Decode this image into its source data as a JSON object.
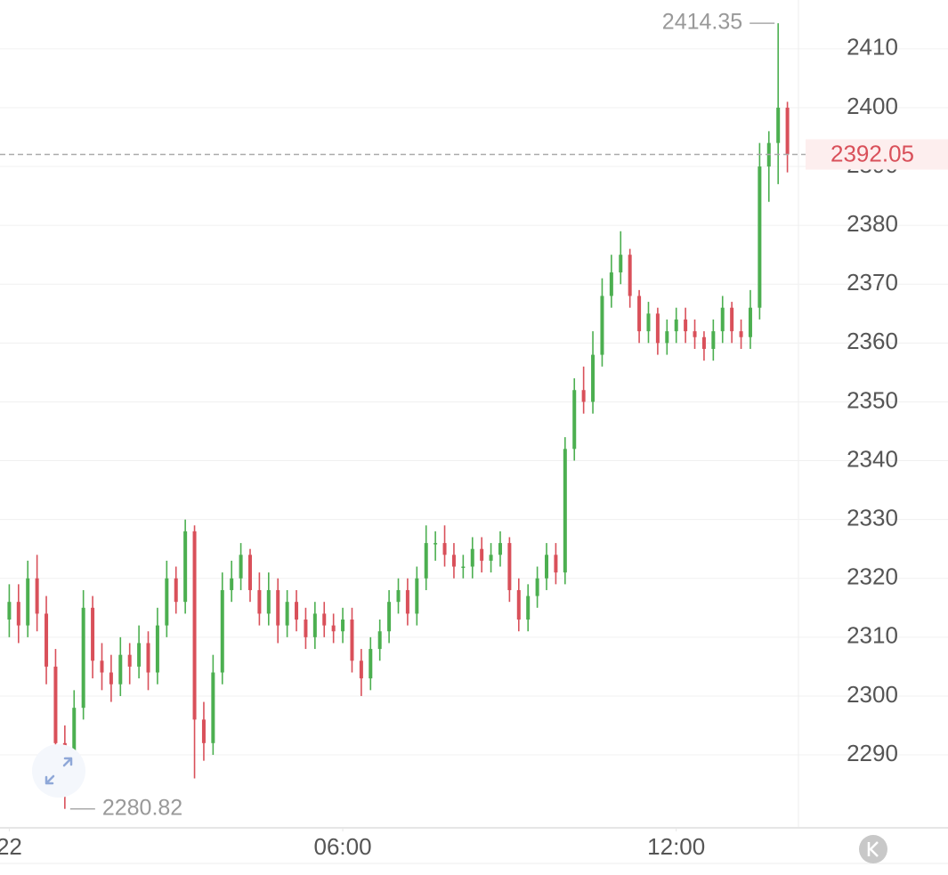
{
  "chart_data": {
    "type": "candlestick",
    "up_color": "#4caf50",
    "down_color": "#d9505a",
    "xlim": [
      -10,
      850
    ],
    "xticks": [
      {
        "value": 0,
        "label": "22"
      },
      {
        "value": 360,
        "label": "06:00"
      },
      {
        "value": 720,
        "label": "12:00"
      }
    ],
    "ylim": [
      2277.6,
      2418.3
    ],
    "yticks": [
      2290,
      2300,
      2310,
      2320,
      2330,
      2340,
      2350,
      2360,
      2370,
      2380,
      2390,
      2400,
      2410
    ],
    "grid": true,
    "x": [
      0,
      10,
      20,
      30,
      40,
      50,
      60,
      70,
      80,
      90,
      100,
      110,
      120,
      130,
      140,
      150,
      160,
      170,
      180,
      190,
      200,
      210,
      220,
      230,
      240,
      250,
      260,
      270,
      280,
      290,
      300,
      310,
      320,
      330,
      340,
      350,
      360,
      370,
      380,
      390,
      400,
      410,
      420,
      430,
      440,
      450,
      460,
      470,
      480,
      490,
      500,
      510,
      520,
      530,
      540,
      550,
      560,
      570,
      580,
      590,
      600,
      610,
      620,
      630,
      640,
      650,
      660,
      670,
      680,
      690,
      700,
      710,
      720,
      730,
      740,
      750,
      760,
      770,
      780,
      790,
      800,
      810,
      820,
      830,
      840
    ],
    "open": [
      2313,
      2316,
      2312,
      2320,
      2314,
      2305,
      2292,
      2288,
      2298,
      2315,
      2306,
      2304,
      2302,
      2307,
      2305,
      2309,
      2304,
      2312,
      2320,
      2316,
      2328,
      2296,
      2292,
      2304,
      2318,
      2320,
      2324,
      2318,
      2314,
      2318,
      2312,
      2316,
      2313,
      2310,
      2314,
      2312,
      2311,
      2313,
      2306,
      2303,
      2308,
      2311,
      2316,
      2318,
      2314,
      2320,
      2326,
      2326,
      2324,
      2322,
      2322,
      2325,
      2323,
      2324,
      2326,
      2318,
      2313,
      2317,
      2320,
      2324,
      2321,
      2342,
      2352,
      2350,
      2358,
      2368,
      2372,
      2375,
      2368,
      2362,
      2365,
      2360,
      2362,
      2364,
      2362,
      2361,
      2359,
      2362,
      2366,
      2362,
      2361,
      2366,
      2390,
      2394,
      2400
    ],
    "high": [
      2319,
      2319,
      2323,
      2324,
      2317,
      2308,
      2295,
      2301,
      2318,
      2317,
      2309,
      2307,
      2310,
      2309,
      2312,
      2311,
      2315,
      2323,
      2322,
      2330,
      2329,
      2299,
      2307,
      2321,
      2323,
      2326,
      2325,
      2321,
      2321,
      2320,
      2318,
      2318,
      2315,
      2316,
      2316,
      2314,
      2315,
      2315,
      2308,
      2310,
      2313,
      2318,
      2320,
      2320,
      2322,
      2329,
      2328,
      2329,
      2326,
      2324,
      2327,
      2327,
      2326,
      2328,
      2327,
      2320,
      2319,
      2322,
      2326,
      2326,
      2344,
      2354,
      2356,
      2362,
      2371,
      2375,
      2379,
      2376,
      2369,
      2367,
      2366,
      2364,
      2366,
      2366,
      2364,
      2362,
      2364,
      2368,
      2367,
      2364,
      2369,
      2394,
      2396,
      2414.35,
      2401
    ],
    "low": [
      2310,
      2309,
      2310,
      2311,
      2302,
      2289,
      2280.82,
      2286,
      2296,
      2303,
      2301,
      2299,
      2300,
      2302,
      2303,
      2301,
      2302,
      2310,
      2314,
      2314,
      2286,
      2289,
      2290,
      2302,
      2316,
      2318,
      2316,
      2312,
      2312,
      2309,
      2310,
      2311,
      2308,
      2308,
      2310,
      2309,
      2309,
      2304,
      2300,
      2301,
      2306,
      2309,
      2314,
      2312,
      2312,
      2318,
      2323,
      2322,
      2320,
      2320,
      2320,
      2321,
      2321,
      2322,
      2316,
      2311,
      2311,
      2315,
      2318,
      2319,
      2319,
      2340,
      2348,
      2348,
      2356,
      2366,
      2370,
      2366,
      2360,
      2360,
      2358,
      2358,
      2360,
      2360,
      2359,
      2357,
      2357,
      2360,
      2360,
      2359,
      2359,
      2364,
      2384,
      2387,
      2389
    ],
    "close": [
      2316,
      2312,
      2320,
      2314,
      2305,
      2292,
      2288,
      2298,
      2315,
      2306,
      2304,
      2302,
      2307,
      2305,
      2309,
      2304,
      2312,
      2320,
      2316,
      2328,
      2296,
      2292,
      2304,
      2318,
      2320,
      2324,
      2318,
      2314,
      2318,
      2312,
      2316,
      2313,
      2310,
      2314,
      2312,
      2311,
      2313,
      2306,
      2303,
      2308,
      2311,
      2316,
      2318,
      2314,
      2320,
      2326,
      2326,
      2324,
      2322,
      2322,
      2325,
      2323,
      2324,
      2326,
      2318,
      2313,
      2317,
      2320,
      2324,
      2321,
      2342,
      2352,
      2350,
      2358,
      2368,
      2372,
      2375,
      2368,
      2362,
      2365,
      2360,
      2362,
      2364,
      2362,
      2361,
      2359,
      2362,
      2366,
      2362,
      2361,
      2366,
      2390,
      2394,
      2400,
      2392.05
    ]
  }
}
